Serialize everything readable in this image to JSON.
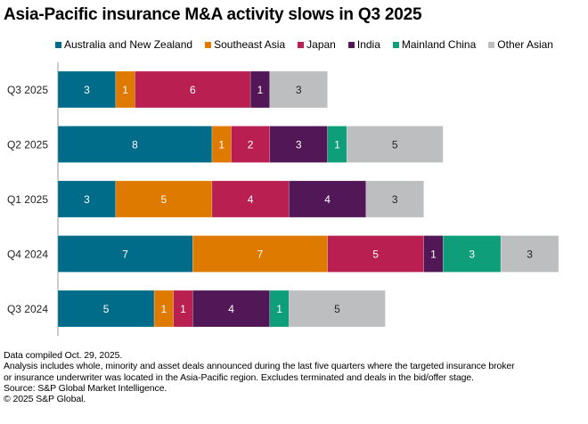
{
  "chart_data": {
    "type": "bar",
    "orientation": "horizontal",
    "stacked": true,
    "title": "Asia-Pacific insurance M&A activity slows in Q3 2025",
    "xlabel": "",
    "ylabel": "",
    "categories": [
      "Q3 2025",
      "Q2 2025",
      "Q1 2025",
      "Q4 2024",
      "Q3 2024"
    ],
    "series": [
      {
        "name": "Australia and New Zealand",
        "color": "#006C89",
        "label_color": "#ffffff",
        "values": [
          3,
          8,
          3,
          7,
          5
        ]
      },
      {
        "name": "Southeast Asia",
        "color": "#DE7A00",
        "label_color": "#ffffff",
        "values": [
          1,
          1,
          5,
          7,
          1
        ]
      },
      {
        "name": "Japan",
        "color": "#B91F51",
        "label_color": "#ffffff",
        "values": [
          6,
          2,
          4,
          5,
          1
        ]
      },
      {
        "name": "India",
        "color": "#521756",
        "label_color": "#ffffff",
        "values": [
          1,
          3,
          4,
          1,
          4
        ]
      },
      {
        "name": "Mainland China",
        "color": "#0F9E7A",
        "label_color": "#ffffff",
        "values": [
          0,
          1,
          0,
          3,
          1
        ]
      },
      {
        "name": "Other Asian",
        "color": "#BDBEC0",
        "label_color": "#222222",
        "values": [
          3,
          5,
          3,
          3,
          5
        ]
      }
    ],
    "xlim": [
      0,
      26
    ],
    "grid": false,
    "legend_position": "top"
  },
  "notes": {
    "line1": "Data compiled Oct. 29, 2025.",
    "line2": "Analysis includes whole, minority and asset deals announced during the last five quarters where the targeted insurance broker",
    "line3": "or insurance underwriter was located in the Asia-Pacific region. Excludes terminated and deals in the bid/offer stage.",
    "line4": "Source: S&P Global Market Intelligence.",
    "line5": "© 2025 S&P Global."
  }
}
